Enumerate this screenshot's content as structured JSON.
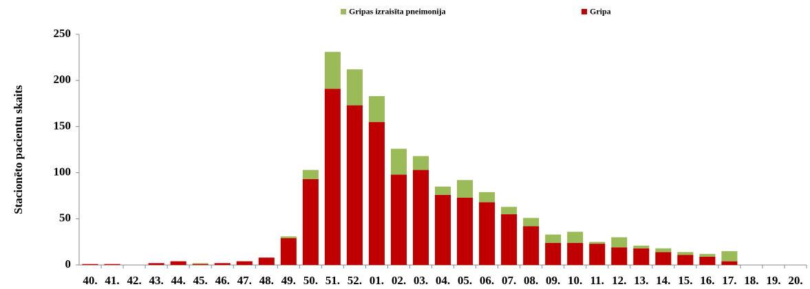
{
  "chart_data": {
    "type": "stacked-bar",
    "y_label": "Stacionēto pacientu skaits",
    "categories": [
      "40.",
      "41.",
      "42.",
      "43.",
      "44.",
      "45.",
      "46.",
      "47.",
      "48.",
      "49.",
      "50.",
      "51.",
      "52.",
      "01.",
      "02.",
      "03.",
      "04.",
      "05.",
      "06.",
      "07.",
      "08.",
      "09.",
      "10.",
      "11.",
      "12.",
      "13.",
      "14.",
      "15.",
      "16.",
      "17.",
      "18.",
      "19.",
      "20."
    ],
    "series": [
      {
        "name": "Gripas izraisīta pneimonija",
        "color": "#9bbb59",
        "values": [
          0,
          0,
          0,
          0,
          0,
          1,
          0,
          0,
          0,
          2,
          10,
          40,
          39,
          28,
          28,
          15,
          9,
          19,
          11,
          8,
          9,
          9,
          12,
          2,
          11,
          3,
          4,
          3,
          3,
          11,
          0,
          0,
          0
        ]
      },
      {
        "name": "Gripa",
        "color": "#c00000",
        "values": [
          1,
          1,
          0,
          2,
          4,
          1,
          2,
          4,
          8,
          29,
          93,
          191,
          173,
          155,
          98,
          103,
          76,
          73,
          68,
          55,
          42,
          24,
          24,
          23,
          19,
          18,
          14,
          11,
          9,
          4,
          0,
          0,
          0
        ]
      }
    ],
    "ylim": [
      0,
      250
    ],
    "yticks": [
      0,
      50,
      100,
      150,
      200,
      250
    ],
    "grid": false
  }
}
